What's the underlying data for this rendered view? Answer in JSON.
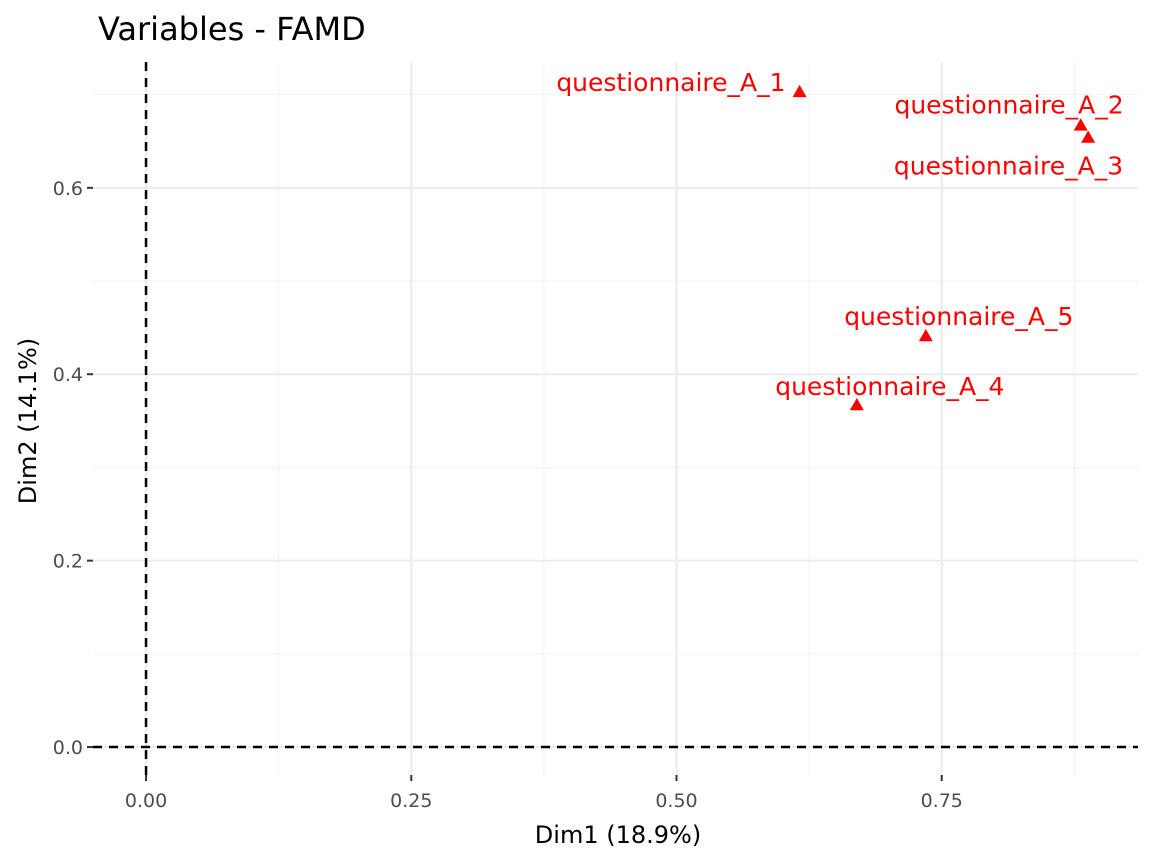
{
  "chart_data": {
    "type": "scatter",
    "title": "Variables - FAMD",
    "xlabel": "Dim1 (18.9%)",
    "ylabel": "Dim2 (14.1%)",
    "xlim": [
      -0.05,
      0.935
    ],
    "ylim": [
      -0.03,
      0.735
    ],
    "x_ticks": [
      0.0,
      0.25,
      0.5,
      0.75
    ],
    "x_tick_labels": [
      "0.00",
      "0.25",
      "0.50",
      "0.75"
    ],
    "y_ticks": [
      0.0,
      0.2,
      0.4,
      0.6
    ],
    "y_tick_labels": [
      "0.0",
      "0.2",
      "0.4",
      "0.6"
    ],
    "grid": true,
    "reference_lines": {
      "x": 0,
      "y": 0,
      "style": "dashed"
    },
    "marker": "triangle",
    "point_color": "#ff0000",
    "points": [
      {
        "label": "questionnaire_A_1",
        "x": 0.616,
        "y": 0.703
      },
      {
        "label": "questionnaire_A_2",
        "x": 0.881,
        "y": 0.667
      },
      {
        "label": "questionnaire_A_3",
        "x": 0.888,
        "y": 0.654
      },
      {
        "label": "questionnaire_A_5",
        "x": 0.735,
        "y": 0.441
      },
      {
        "label": "questionnaire_A_4",
        "x": 0.67,
        "y": 0.367
      }
    ]
  }
}
